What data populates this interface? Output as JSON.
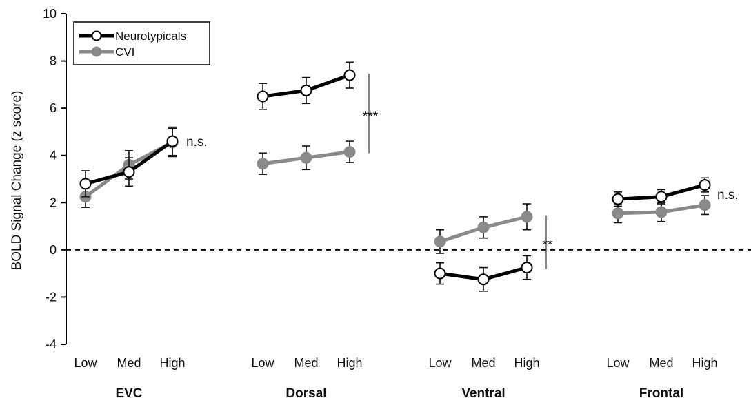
{
  "chart_data": {
    "type": "line",
    "ylabel": "BOLD Signal Change (z score)",
    "ylim": [
      -4,
      10
    ],
    "yticks": [
      -4,
      -2,
      0,
      2,
      4,
      6,
      8,
      10
    ],
    "zero_line": "dashed",
    "grid": false,
    "legend_position": "top-left",
    "conditions": [
      "Low",
      "Med",
      "High"
    ],
    "groups": [
      {
        "name": "EVC",
        "significance": "n.s.",
        "series": [
          {
            "name": "Neurotypicals",
            "values": [
              2.8,
              3.3,
              4.6
            ],
            "errors": [
              0.55,
              0.6,
              0.6
            ]
          },
          {
            "name": "CVI",
            "values": [
              2.25,
              3.6,
              4.55
            ],
            "errors": [
              0.45,
              0.6,
              0.6
            ]
          }
        ]
      },
      {
        "name": "Dorsal",
        "significance": "***",
        "series": [
          {
            "name": "Neurotypicals",
            "values": [
              6.5,
              6.75,
              7.4
            ],
            "errors": [
              0.55,
              0.55,
              0.55
            ]
          },
          {
            "name": "CVI",
            "values": [
              3.65,
              3.9,
              4.15
            ],
            "errors": [
              0.45,
              0.5,
              0.45
            ]
          }
        ]
      },
      {
        "name": "Ventral",
        "significance": "**",
        "series": [
          {
            "name": "Neurotypicals",
            "values": [
              -1.0,
              -1.25,
              -0.75
            ],
            "errors": [
              0.45,
              0.5,
              0.5
            ]
          },
          {
            "name": "CVI",
            "values": [
              0.35,
              0.95,
              1.4
            ],
            "errors": [
              0.5,
              0.45,
              0.55
            ]
          }
        ]
      },
      {
        "name": "Frontal",
        "significance": "n.s.",
        "series": [
          {
            "name": "Neurotypicals",
            "values": [
              2.15,
              2.25,
              2.75
            ],
            "errors": [
              0.3,
              0.3,
              0.3
            ]
          },
          {
            "name": "CVI",
            "values": [
              1.55,
              1.6,
              1.9
            ],
            "errors": [
              0.4,
              0.4,
              0.4
            ]
          }
        ]
      }
    ],
    "legend": [
      {
        "name": "Neurotypicals",
        "line_color": "#000000",
        "marker_fill": "#ffffff"
      },
      {
        "name": "CVI",
        "line_color": "#8a8a8a",
        "marker_fill": "#8a8a8a"
      }
    ]
  }
}
